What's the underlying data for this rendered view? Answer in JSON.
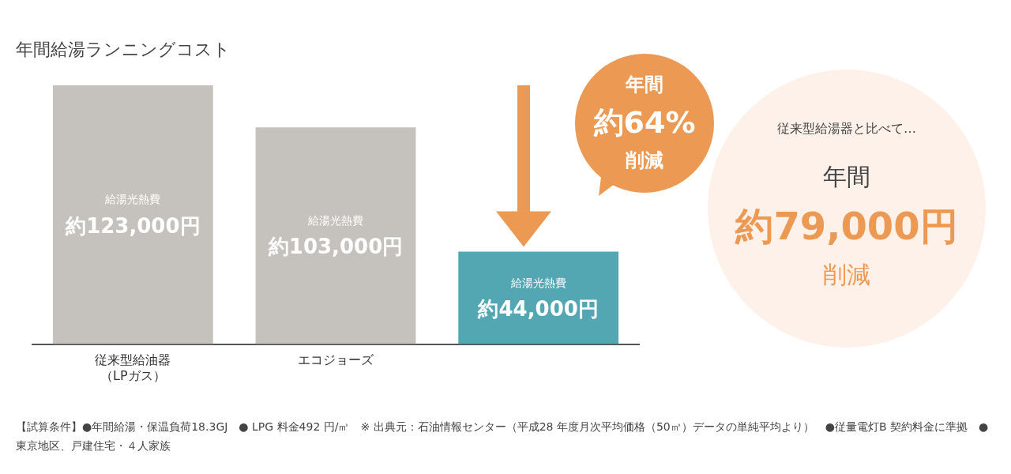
{
  "chart_data": {
    "type": "bar",
    "title": "年間給湯ランニングコスト",
    "categories": [
      "従来型給油器（LPガス）",
      "エコジョーズ",
      null
    ],
    "values": [
      123000,
      103000,
      44000
    ],
    "colors": [
      "#c5c1bc",
      "#c5c1bc",
      "#53a7b2"
    ],
    "value_labels": [
      "約123,000円",
      "約103,000円",
      "約44,000円"
    ],
    "grid": false,
    "legend": false,
    "annotations": [
      "給湯光熱費",
      "給湯光熱費",
      "給湯光熱費",
      "年間",
      "約64%",
      "削減",
      "従来型給湯器と比べて…",
      "年間",
      "約79,000円",
      "削減",
      "【試算条件】●年間給湯・保温負荷18.3GJ　● LPG 料金492 円/㎥　※ 出典元：石油情報センター（平成28 年度月次平均価格（50㎥）データの単純平均より）　●従量電灯B 契約料金に準拠　●東京地区、戸建住宅・４人家族"
    ]
  }
}
